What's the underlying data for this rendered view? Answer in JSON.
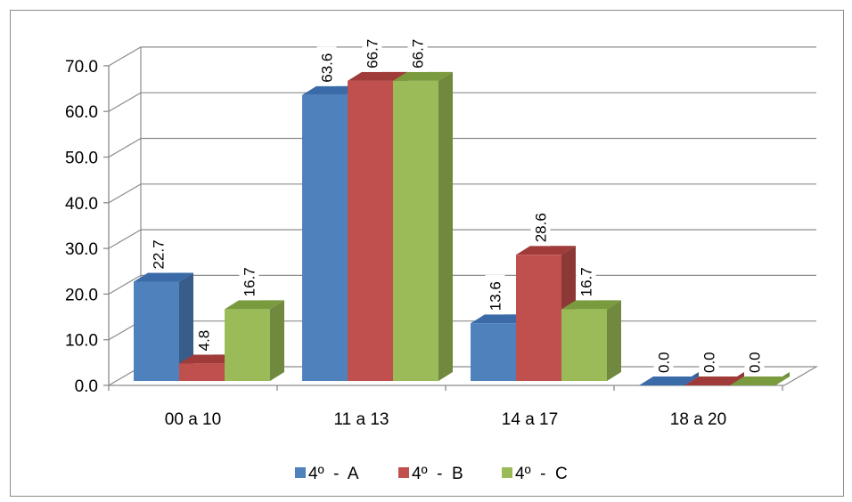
{
  "chart_data": {
    "type": "bar",
    "style": "3d-clustered-column",
    "categories": [
      "00 a 10",
      "11 a 13",
      "14 a 17",
      "18 a 20"
    ],
    "series": [
      {
        "name": "4º  -  A",
        "color": "#4F81BD",
        "side": "#385D8A",
        "top": "#3A6BA8",
        "values": [
          22.7,
          63.6,
          13.6,
          0.0
        ],
        "labels": [
          "22.7",
          "63.6",
          "13.6",
          "0.0"
        ]
      },
      {
        "name": "4º  -  B",
        "color": "#C0504D",
        "side": "#8C3836",
        "top": "#9F3B38",
        "values": [
          4.8,
          66.7,
          28.6,
          0.0
        ],
        "labels": [
          "4.8",
          "66.7",
          "28.6",
          "0.0"
        ]
      },
      {
        "name": "4º  -  C",
        "color": "#9BBB59",
        "side": "#71893F",
        "top": "#7A9A3E",
        "values": [
          16.7,
          66.7,
          16.7,
          0.0
        ],
        "labels": [
          "16.7",
          "66.7",
          "16.7",
          "0.0"
        ]
      }
    ],
    "yticks": [
      "0.0",
      "10.0",
      "20.0",
      "30.0",
      "40.0",
      "50.0",
      "60.0",
      "70.0"
    ],
    "ylim": [
      0,
      70
    ],
    "grid": true,
    "legend": "bottom",
    "title": "",
    "xlabel": "",
    "ylabel": ""
  }
}
